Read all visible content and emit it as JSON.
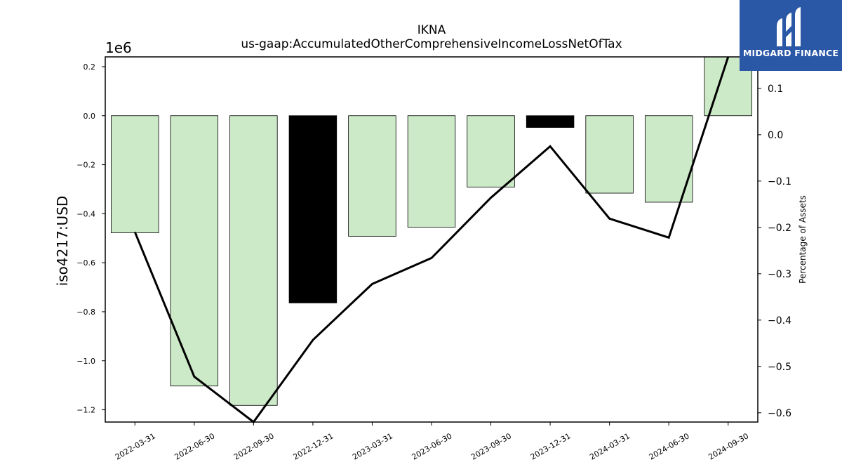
{
  "chart_data": {
    "type": "bar",
    "title": "IKNA",
    "subtitle": "us-gaap:AccumulatedOtherComprehensiveIncomeLossNetOfTax",
    "ylabel": "iso4217:USD",
    "y_offset_label": "1e6",
    "y2label": "Percentage of Assets",
    "categories": [
      "2022-03-31",
      "2022-06-30",
      "2022-09-30",
      "2022-12-31",
      "2023-03-31",
      "2023-06-30",
      "2023-09-30",
      "2023-12-31",
      "2024-03-31",
      "2024-06-30",
      "2024-09-30"
    ],
    "values": [
      -0.478,
      -1.103,
      -1.182,
      -0.764,
      -0.492,
      -0.455,
      -0.291,
      -0.048,
      -0.316,
      -0.353,
      0.24
    ],
    "bar_colors": [
      "#cdeac8",
      "#cdeac8",
      "#cdeac8",
      "#000000",
      "#cdeac8",
      "#cdeac8",
      "#cdeac8",
      "#000000",
      "#cdeac8",
      "#cdeac8",
      "#cdeac8"
    ],
    "ylim": [
      -1.25,
      0.24
    ],
    "yticks": [
      "0.2",
      "0.0",
      "−0.2",
      "−0.4",
      "−0.6",
      "−0.8",
      "−1.0",
      "−1.2"
    ],
    "ytick_values": [
      0.2,
      0.0,
      -0.2,
      -0.4,
      -0.6,
      -0.8,
      -1.0,
      -1.2
    ],
    "line_series": {
      "values": [
        -0.21,
        -0.522,
        -0.62,
        -0.443,
        -0.322,
        -0.266,
        -0.136,
        -0.025,
        -0.181,
        -0.222,
        0.168
      ]
    },
    "y2lim": [
      -0.62,
      0.168
    ],
    "y2ticks": [
      "0.1",
      "0.0",
      "−0.1",
      "−0.2",
      "−0.3",
      "−0.4",
      "−0.5",
      "−0.6"
    ],
    "y2tick_values": [
      0.1,
      0.0,
      -0.1,
      -0.2,
      -0.3,
      -0.4,
      -0.5,
      -0.6
    ],
    "line_color": "#000000",
    "grid": false
  },
  "logo": {
    "text": "MIDGARD FINANCE",
    "background": "#2b57a7"
  }
}
